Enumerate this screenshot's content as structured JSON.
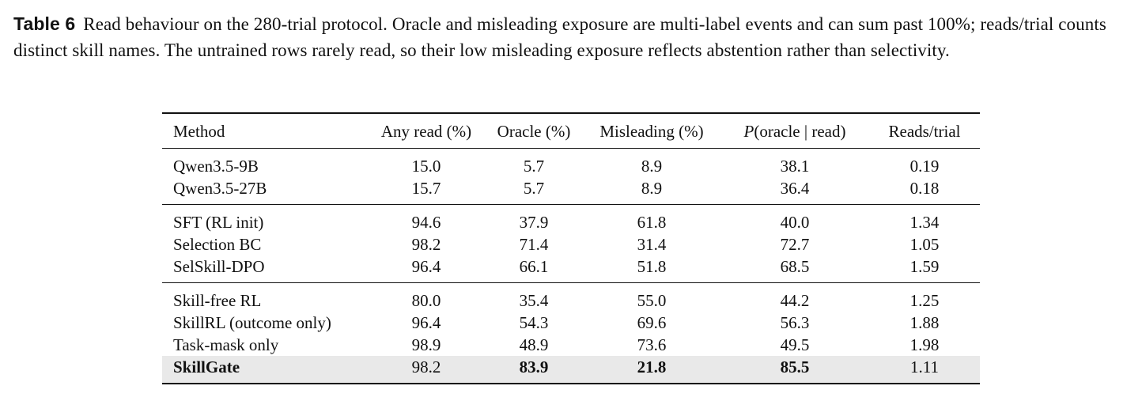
{
  "caption": {
    "label": "Table 6",
    "text": "Read behaviour on the 280-trial protocol. Oracle and misleading exposure are multi-label events and can sum past 100%; reads/trial counts distinct skill names. The untrained rows rarely read, so their low misleading exposure reflects abstention rather than selectivity."
  },
  "table": {
    "headers": {
      "method": "Method",
      "any_read": "Any read (%)",
      "oracle": "Oracle (%)",
      "misleading": "Misleading (%)",
      "p_var": "P",
      "p_rest": "(oracle | read)",
      "reads_trial": "Reads/trial"
    },
    "groups": [
      [
        {
          "method": "Qwen3.5-9B",
          "any_read": "15.0",
          "oracle": "5.7",
          "misleading": "8.9",
          "p": "38.1",
          "reads_trial": "0.19"
        },
        {
          "method": "Qwen3.5-27B",
          "any_read": "15.7",
          "oracle": "5.7",
          "misleading": "8.9",
          "p": "36.4",
          "reads_trial": "0.18"
        }
      ],
      [
        {
          "method": "SFT (RL init)",
          "any_read": "94.6",
          "oracle": "37.9",
          "misleading": "61.8",
          "p": "40.0",
          "reads_trial": "1.34"
        },
        {
          "method": "Selection BC",
          "any_read": "98.2",
          "oracle": "71.4",
          "misleading": "31.4",
          "p": "72.7",
          "reads_trial": "1.05"
        },
        {
          "method": "SelSkill-DPO",
          "any_read": "96.4",
          "oracle": "66.1",
          "misleading": "51.8",
          "p": "68.5",
          "reads_trial": "1.59"
        }
      ],
      [
        {
          "method": "Skill-free RL",
          "any_read": "80.0",
          "oracle": "35.4",
          "misleading": "55.0",
          "p": "44.2",
          "reads_trial": "1.25"
        },
        {
          "method": "SkillRL (outcome only)",
          "any_read": "96.4",
          "oracle": "54.3",
          "misleading": "69.6",
          "p": "56.3",
          "reads_trial": "1.88"
        },
        {
          "method": "Task-mask only",
          "any_read": "98.9",
          "oracle": "48.9",
          "misleading": "73.6",
          "p": "49.5",
          "reads_trial": "1.98"
        },
        {
          "method": "SkillGate",
          "any_read": "98.2",
          "oracle": "83.9",
          "misleading": "21.8",
          "p": "85.5",
          "reads_trial": "1.11"
        }
      ]
    ]
  }
}
